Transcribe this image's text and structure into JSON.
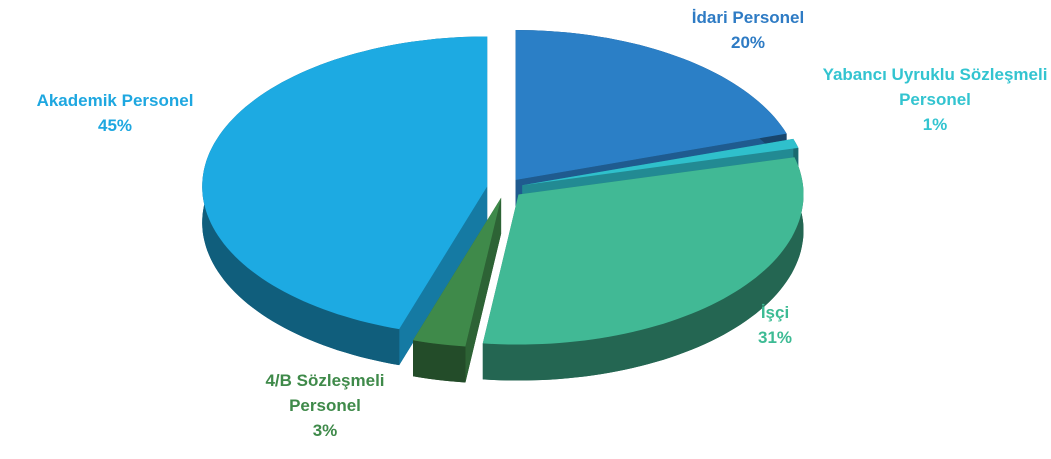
{
  "chart_data": {
    "type": "pie3d",
    "categories": [
      "İdari Personel",
      "Yabancı Uyruklu Sözleşmeli Personel",
      "İşçi",
      "4/B Sözleşmeli Personel",
      "Akademik Personel"
    ],
    "values": [
      20,
      1,
      31,
      3,
      45
    ],
    "value_labels": [
      "20%",
      "1%",
      "31%",
      "3%",
      "45%"
    ],
    "colors": [
      "#2b7fc6",
      "#2fc0cc",
      "#41b995",
      "#3f8a4a",
      "#1daae2"
    ],
    "label_colors": [
      "#2e7bc4",
      "#33c4d0",
      "#3dbb94",
      "#3f8a4a",
      "#1ea7e0"
    ]
  }
}
